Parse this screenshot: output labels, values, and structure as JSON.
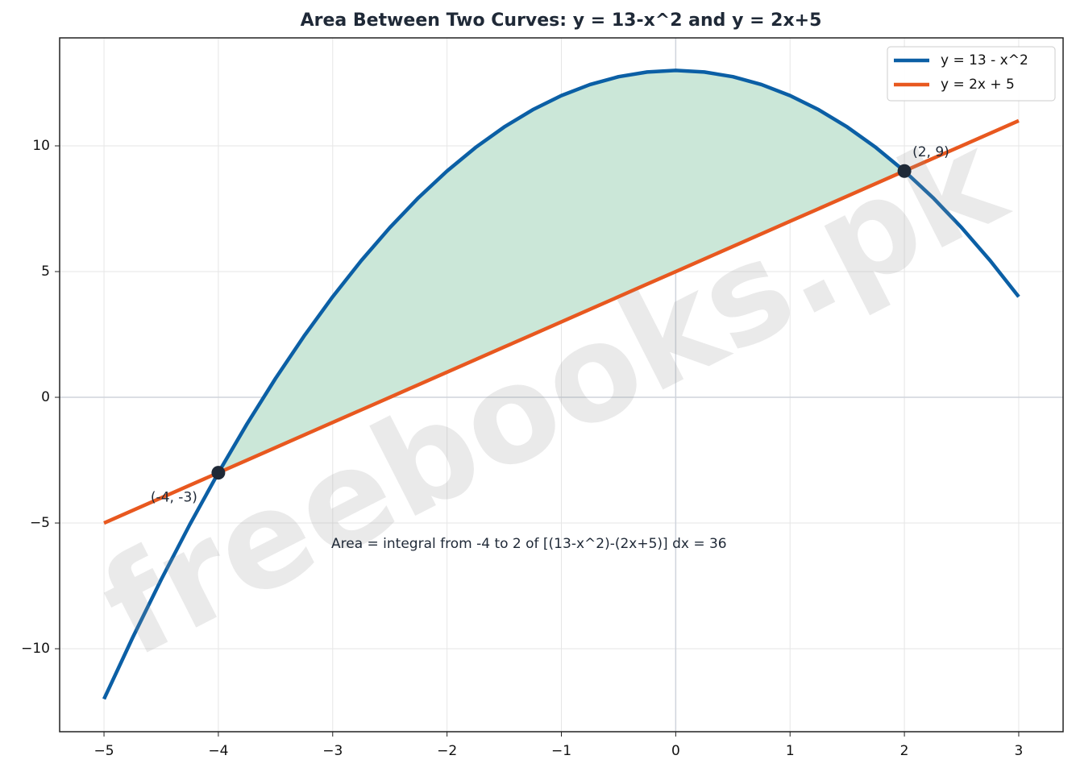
{
  "chart_data": {
    "type": "line",
    "title": "Area Between Two Curves: y = 13-x^2 and y = 2x+5",
    "x": [
      -5,
      -4.75,
      -4.5,
      -4.25,
      -4,
      -3.75,
      -3.5,
      -3.25,
      -3,
      -2.75,
      -2.5,
      -2.25,
      -2,
      -1.75,
      -1.5,
      -1.25,
      -1,
      -0.75,
      -0.5,
      -0.25,
      0,
      0.25,
      0.5,
      0.75,
      1,
      1.25,
      1.5,
      1.75,
      2,
      2.25,
      2.5,
      2.75,
      3
    ],
    "series": [
      {
        "name": "y = 13 - x^2",
        "color": "#0b5fa5",
        "values": [
          -12,
          -9.5625,
          -7.25,
          -5.0625,
          -3,
          -1.0625,
          0.75,
          2.4375,
          4,
          5.4375,
          6.75,
          7.9375,
          9,
          9.9375,
          10.75,
          11.4375,
          12,
          12.4375,
          12.75,
          12.9375,
          13,
          12.9375,
          12.75,
          12.4375,
          12,
          11.4375,
          10.75,
          9.9375,
          9,
          7.9375,
          6.75,
          5.4375,
          4
        ]
      },
      {
        "name": "y = 2x + 5",
        "color": "#e8581f",
        "values": [
          -5,
          -4.5,
          -4,
          -3.5,
          -3,
          -2.5,
          -2,
          -1.5,
          -1,
          -0.5,
          0,
          0.5,
          1,
          1.5,
          2,
          2.5,
          3,
          3.5,
          4,
          4.5,
          5,
          5.5,
          6,
          6.5,
          7,
          7.5,
          8,
          8.5,
          9,
          9.5,
          10,
          10.5,
          11
        ]
      }
    ],
    "fill_between": {
      "x_from": -4,
      "x_to": 2,
      "color": "#cbe7d8"
    },
    "points": [
      {
        "x": -4,
        "y": -3,
        "label": "(-4, -3)"
      },
      {
        "x": 2,
        "y": 9,
        "label": "(2, 9)"
      }
    ],
    "point_color": "#1f2937",
    "annotation": "Area = integral from -4 to 2 of [(13-x^2)-(2x+5)] dx = 36",
    "watermark": "freebooks.pk",
    "xlim": [
      -5.388,
      3.388
    ],
    "ylim": [
      -13.3,
      14.295
    ],
    "xticks": [
      {
        "value": -5,
        "label": "−5"
      },
      {
        "value": -4,
        "label": "−4"
      },
      {
        "value": -3,
        "label": "−3"
      },
      {
        "value": -2,
        "label": "−2"
      },
      {
        "value": -1,
        "label": "−1"
      },
      0,
      1,
      2,
      3
    ],
    "yticks": [
      {
        "value": -10,
        "label": "−10"
      },
      {
        "value": -5,
        "label": "−5"
      },
      0,
      5,
      10
    ],
    "grid": true,
    "legend": "upper right"
  }
}
